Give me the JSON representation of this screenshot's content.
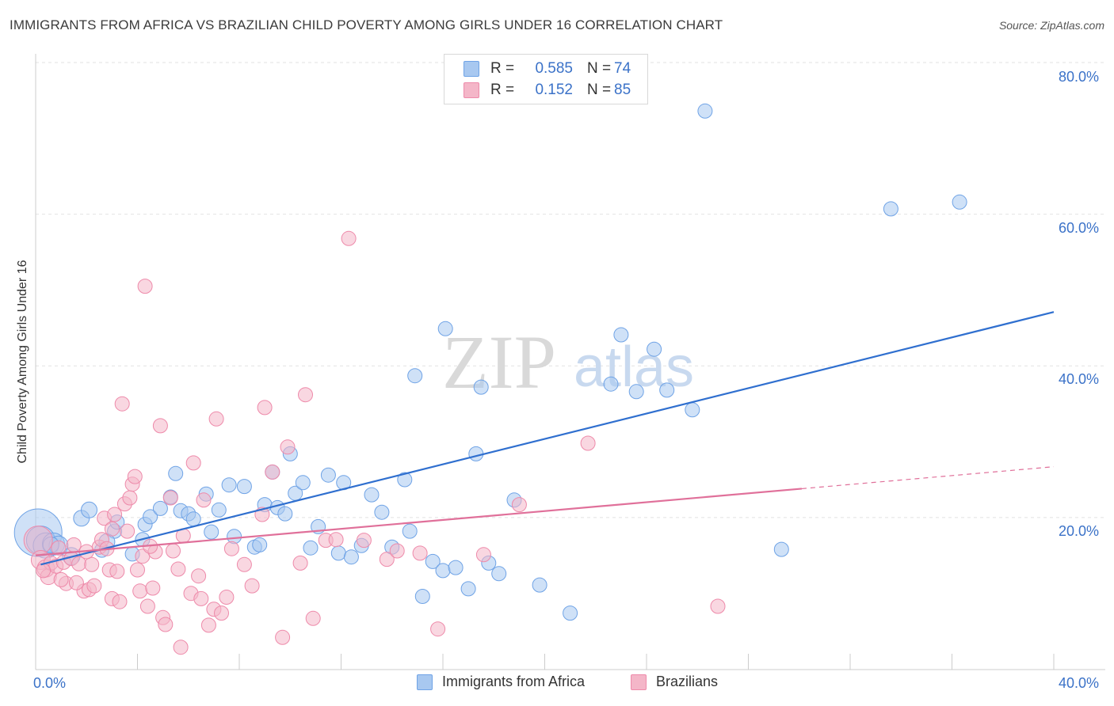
{
  "title": "IMMIGRANTS FROM AFRICA VS BRAZILIAN CHILD POVERTY AMONG GIRLS UNDER 16 CORRELATION CHART",
  "source": "Source: ZipAtlas.com",
  "watermark": {
    "zip": "ZIP",
    "atlas": "atlas"
  },
  "legend": {
    "rows": [
      {
        "r_label": "R =",
        "r_value": "0.585",
        "n_label": "N =",
        "n_value": "74",
        "color": "#a8c8f0"
      },
      {
        "r_label": "R =",
        "r_value": "0.152",
        "n_label": "N =",
        "n_value": "85",
        "color": "#f4b6c8"
      }
    ]
  },
  "bottom_legend": [
    {
      "label": "Immigrants from Africa",
      "color": "#a8c8f0"
    },
    {
      "label": "Brazilians",
      "color": "#f4b6c8"
    }
  ],
  "chart_data": {
    "type": "scatter",
    "title": "IMMIGRANTS FROM AFRICA VS BRAZILIAN CHILD POVERTY AMONG GIRLS UNDER 16 CORRELATION CHART",
    "xlabel": "",
    "ylabel": "Child Poverty Among Girls Under 16",
    "xlim": [
      0,
      40
    ],
    "ylim": [
      0,
      80
    ],
    "x_tick_labels": [
      "0.0%",
      "40.0%"
    ],
    "y_tick_labels": [
      "20.0%",
      "40.0%",
      "60.0%",
      "80.0%"
    ],
    "y_ticks": [
      20,
      40,
      60,
      80
    ],
    "grid": "horizontal dashed",
    "legend_position": "top-center",
    "series": [
      {
        "name": "Immigrants from Africa",
        "color": "#6fa3e6",
        "fill": "#a8c8f0",
        "trend": {
          "x": [
            0.2,
            40
          ],
          "y": [
            13.8,
            47.1
          ],
          "color": "#2f6fcf",
          "dashed_from": null
        },
        "points": [
          [
            0.1,
            18.0,
            30
          ],
          [
            0.2,
            17.0,
            18
          ],
          [
            0.4,
            16.3,
            16
          ],
          [
            0.7,
            16.5,
            14
          ],
          [
            0.9,
            16.3,
            12
          ],
          [
            1.4,
            14.9,
            11
          ],
          [
            1.8,
            19.9,
            10
          ],
          [
            2.1,
            21.0,
            10
          ],
          [
            2.6,
            15.7,
            9
          ],
          [
            3.1,
            18.2,
            9
          ],
          [
            3.2,
            19.4,
            9
          ],
          [
            3.8,
            15.2,
            9
          ],
          [
            4.2,
            17.1,
            9
          ],
          [
            4.3,
            19.1,
            9
          ],
          [
            4.5,
            20.1,
            9
          ],
          [
            4.9,
            21.2,
            9
          ],
          [
            5.3,
            22.7,
            9
          ],
          [
            5.5,
            25.8,
            9
          ],
          [
            5.7,
            20.9,
            9
          ],
          [
            6.0,
            20.5,
            9
          ],
          [
            6.2,
            19.8,
            9
          ],
          [
            6.7,
            23.1,
            9
          ],
          [
            6.9,
            18.1,
            9
          ],
          [
            7.2,
            21.0,
            9
          ],
          [
            7.6,
            24.3,
            9
          ],
          [
            7.8,
            17.5,
            9
          ],
          [
            8.2,
            24.1,
            9
          ],
          [
            8.6,
            16.1,
            9
          ],
          [
            8.8,
            16.4,
            9
          ],
          [
            9.0,
            21.7,
            9
          ],
          [
            9.3,
            26.0,
            9
          ],
          [
            9.5,
            21.3,
            9
          ],
          [
            9.8,
            20.5,
            9
          ],
          [
            10.0,
            28.4,
            9
          ],
          [
            10.2,
            23.2,
            9
          ],
          [
            10.5,
            24.6,
            9
          ],
          [
            10.8,
            16.0,
            9
          ],
          [
            11.1,
            18.8,
            9
          ],
          [
            11.5,
            25.6,
            9
          ],
          [
            11.9,
            15.3,
            9
          ],
          [
            12.1,
            24.6,
            9
          ],
          [
            12.4,
            14.8,
            9
          ],
          [
            12.8,
            16.3,
            9
          ],
          [
            13.2,
            23.0,
            9
          ],
          [
            13.6,
            20.7,
            9
          ],
          [
            14.0,
            16.1,
            9
          ],
          [
            14.5,
            25.0,
            9
          ],
          [
            14.7,
            18.2,
            9
          ],
          [
            14.9,
            38.7,
            9
          ],
          [
            15.2,
            9.6,
            9
          ],
          [
            15.6,
            14.2,
            9
          ],
          [
            16.0,
            13.0,
            9
          ],
          [
            16.1,
            44.9,
            9
          ],
          [
            16.5,
            13.4,
            9
          ],
          [
            17.0,
            10.6,
            9
          ],
          [
            17.3,
            28.4,
            9
          ],
          [
            17.5,
            37.2,
            9
          ],
          [
            17.8,
            14.0,
            9
          ],
          [
            18.2,
            12.6,
            9
          ],
          [
            18.8,
            22.3,
            9
          ],
          [
            19.8,
            11.1,
            9
          ],
          [
            21.0,
            7.4,
            9
          ],
          [
            22.6,
            37.6,
            9
          ],
          [
            23.0,
            44.1,
            9
          ],
          [
            23.6,
            36.6,
            9
          ],
          [
            24.3,
            42.2,
            9
          ],
          [
            24.8,
            36.8,
            9
          ],
          [
            25.8,
            34.2,
            9
          ],
          [
            26.3,
            73.6,
            9
          ],
          [
            29.3,
            15.8,
            9
          ],
          [
            33.6,
            60.7,
            9
          ],
          [
            36.3,
            61.6,
            9
          ],
          [
            0.6,
            16.4,
            10
          ],
          [
            2.8,
            16.8,
            10
          ]
        ]
      },
      {
        "name": "Brazilians",
        "color": "#ee8aaa",
        "fill": "#f4b6c8",
        "trend": {
          "x": [
            0.0,
            40
          ],
          "y": [
            15.0,
            26.7
          ],
          "color": "#e0709a",
          "solid_until": 30.1
        },
        "points": [
          [
            0.1,
            17.0,
            18
          ],
          [
            0.2,
            14.4,
            12
          ],
          [
            0.4,
            13.3,
            11
          ],
          [
            0.5,
            12.2,
            10
          ],
          [
            0.6,
            14.0,
            9
          ],
          [
            0.8,
            13.6,
            9
          ],
          [
            0.9,
            16.0,
            9
          ],
          [
            1.1,
            14.1,
            9
          ],
          [
            1.2,
            11.3,
            9
          ],
          [
            1.4,
            14.6,
            9
          ],
          [
            1.5,
            16.4,
            9
          ],
          [
            1.7,
            13.9,
            9
          ],
          [
            1.9,
            10.3,
            9
          ],
          [
            2.1,
            10.5,
            9
          ],
          [
            2.2,
            13.8,
            9
          ],
          [
            2.3,
            11.0,
            9
          ],
          [
            2.5,
            16.1,
            9
          ],
          [
            2.6,
            17.1,
            9
          ],
          [
            2.7,
            19.9,
            9
          ],
          [
            2.8,
            15.9,
            9
          ],
          [
            2.9,
            13.1,
            9
          ],
          [
            3.0,
            9.3,
            9
          ],
          [
            3.1,
            20.4,
            9
          ],
          [
            3.2,
            12.9,
            9
          ],
          [
            3.3,
            8.9,
            9
          ],
          [
            3.4,
            35.0,
            9
          ],
          [
            3.5,
            21.8,
            9
          ],
          [
            3.6,
            18.2,
            9
          ],
          [
            3.7,
            22.6,
            9
          ],
          [
            3.8,
            24.4,
            9
          ],
          [
            3.9,
            25.4,
            9
          ],
          [
            4.0,
            13.1,
            9
          ],
          [
            4.1,
            10.3,
            9
          ],
          [
            4.2,
            14.9,
            9
          ],
          [
            4.3,
            50.5,
            9
          ],
          [
            4.4,
            8.3,
            9
          ],
          [
            4.6,
            10.7,
            9
          ],
          [
            4.7,
            15.5,
            9
          ],
          [
            4.9,
            32.1,
            9
          ],
          [
            5.0,
            6.8,
            9
          ],
          [
            5.1,
            5.9,
            9
          ],
          [
            5.3,
            22.6,
            9
          ],
          [
            5.4,
            15.6,
            9
          ],
          [
            5.6,
            13.2,
            9
          ],
          [
            5.7,
            2.9,
            9
          ],
          [
            5.8,
            17.6,
            9
          ],
          [
            6.1,
            10.0,
            9
          ],
          [
            6.2,
            27.2,
            9
          ],
          [
            6.5,
            9.3,
            9
          ],
          [
            6.6,
            22.3,
            9
          ],
          [
            6.8,
            5.8,
            9
          ],
          [
            7.0,
            7.9,
            9
          ],
          [
            7.1,
            33.0,
            9
          ],
          [
            7.3,
            7.4,
            9
          ],
          [
            7.5,
            9.5,
            9
          ],
          [
            7.7,
            15.9,
            9
          ],
          [
            8.2,
            13.8,
            9
          ],
          [
            8.5,
            11.0,
            9
          ],
          [
            8.9,
            20.4,
            9
          ],
          [
            9.0,
            34.5,
            9
          ],
          [
            9.3,
            26.0,
            9
          ],
          [
            9.7,
            4.2,
            9
          ],
          [
            9.9,
            29.3,
            9
          ],
          [
            10.4,
            14.0,
            9
          ],
          [
            10.6,
            36.2,
            9
          ],
          [
            10.9,
            6.7,
            9
          ],
          [
            11.4,
            17.0,
            9
          ],
          [
            11.8,
            17.1,
            9
          ],
          [
            12.3,
            56.8,
            9
          ],
          [
            12.9,
            17.0,
            9
          ],
          [
            13.8,
            14.5,
            9
          ],
          [
            14.2,
            15.6,
            9
          ],
          [
            15.1,
            15.3,
            9
          ],
          [
            15.8,
            5.3,
            9
          ],
          [
            17.6,
            15.1,
            9
          ],
          [
            19.0,
            21.7,
            9
          ],
          [
            21.7,
            29.8,
            9
          ],
          [
            26.8,
            8.3,
            9
          ],
          [
            0.3,
            13.0,
            9
          ],
          [
            1.0,
            11.8,
            9
          ],
          [
            1.6,
            11.4,
            9
          ],
          [
            2.0,
            15.5,
            9
          ],
          [
            3.0,
            18.5,
            9
          ],
          [
            4.5,
            16.2,
            9
          ],
          [
            6.4,
            12.3,
            9
          ]
        ]
      }
    ]
  }
}
